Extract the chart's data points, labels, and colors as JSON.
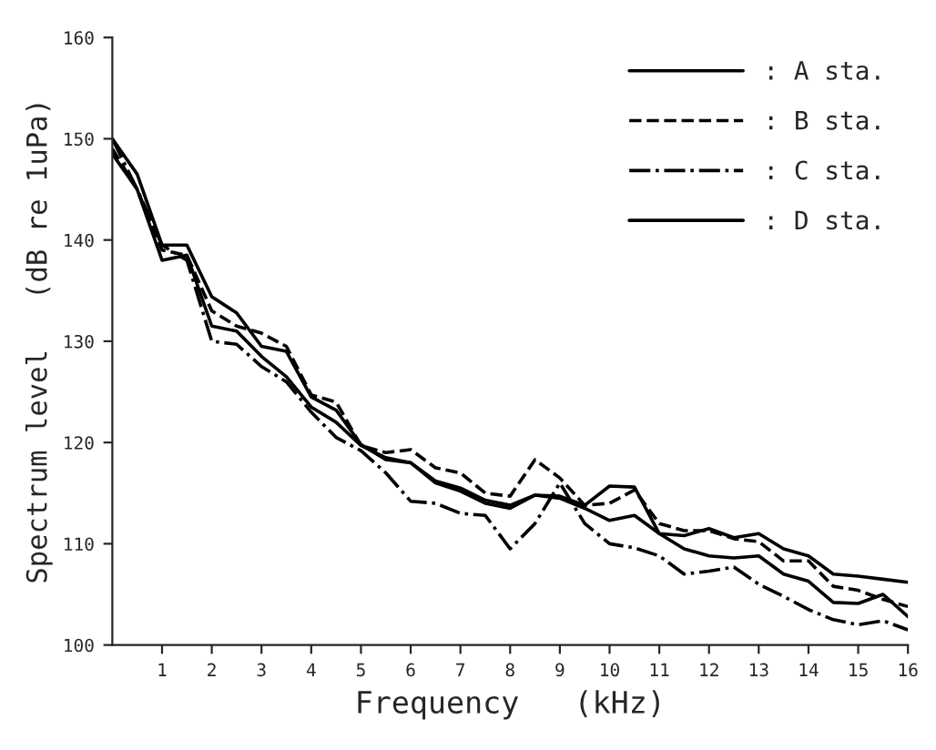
{
  "chart_data": {
    "type": "line",
    "xlabel": "Frequency   (kHz)",
    "ylabel": "Spectrum level   (dB re 1uPa)",
    "x": [
      0,
      0.5,
      1,
      1.5,
      2,
      2.5,
      3,
      3.5,
      4,
      4.5,
      5,
      5.5,
      6,
      6.5,
      7,
      7.5,
      8,
      8.5,
      9,
      9.5,
      10,
      10.5,
      11,
      11.5,
      12,
      12.5,
      13,
      13.5,
      14,
      14.5,
      15,
      15.5,
      16
    ],
    "series": [
      {
        "name": ": A sta.",
        "color": "#000000",
        "line_style": "solid",
        "values": [
          150,
          146.5,
          139.5,
          139.5,
          134.4,
          132.8,
          129.5,
          129,
          124.5,
          123.2,
          119.8,
          118.3,
          118,
          116,
          115.2,
          114,
          113.5,
          114.8,
          114.7,
          113.8,
          115.7,
          115.6,
          111,
          110.8,
          111.5,
          110.6,
          111,
          109.5,
          108.8,
          107,
          106.8,
          106.5,
          106.2
        ]
      },
      {
        "name": ": B sta.",
        "color": "#000000",
        "line_style": "dashed",
        "values": [
          149,
          145,
          139,
          138.5,
          133,
          131.5,
          130.8,
          129.5,
          124.7,
          124,
          119.7,
          119,
          119.3,
          117.5,
          117,
          115,
          114.7,
          118.3,
          116.5,
          113.8,
          114,
          115.3,
          112,
          111.3,
          111.3,
          110.5,
          110.2,
          108.3,
          108.3,
          105.8,
          105.4,
          104.5,
          103.8
        ]
      },
      {
        "name": ": C sta.",
        "color": "#000000",
        "line_style": "dashdot",
        "values": [
          150,
          145,
          139.5,
          138,
          130,
          129.7,
          127.5,
          126,
          123,
          120.5,
          119.2,
          117,
          114.2,
          114,
          113,
          112.8,
          109.5,
          112,
          116,
          112,
          110,
          109.6,
          108.8,
          107,
          107.3,
          107.7,
          106,
          104.8,
          103.5,
          102.5,
          102,
          102.4,
          101.5
        ]
      },
      {
        "name": ": D sta.",
        "color": "#000000",
        "line_style": "solid",
        "values": [
          148.5,
          145,
          138,
          138.5,
          131.5,
          131,
          128.5,
          126.5,
          123.5,
          122,
          119.7,
          118.5,
          118,
          116.2,
          115.5,
          114.3,
          113.8,
          114.8,
          114.5,
          113.5,
          112.3,
          112.8,
          111,
          109.5,
          108.8,
          108.6,
          108.8,
          107,
          106.3,
          104.2,
          104.1,
          105,
          102.8
        ]
      }
    ],
    "xlim": [
      0,
      16
    ],
    "xticks": [
      1,
      2,
      3,
      4,
      5,
      6,
      7,
      8,
      9,
      10,
      11,
      12,
      13,
      14,
      15,
      16
    ],
    "ylim": [
      100,
      160
    ],
    "yticks": [
      100,
      110,
      120,
      130,
      140,
      150,
      160
    ],
    "grid": false,
    "legend": "top right"
  }
}
